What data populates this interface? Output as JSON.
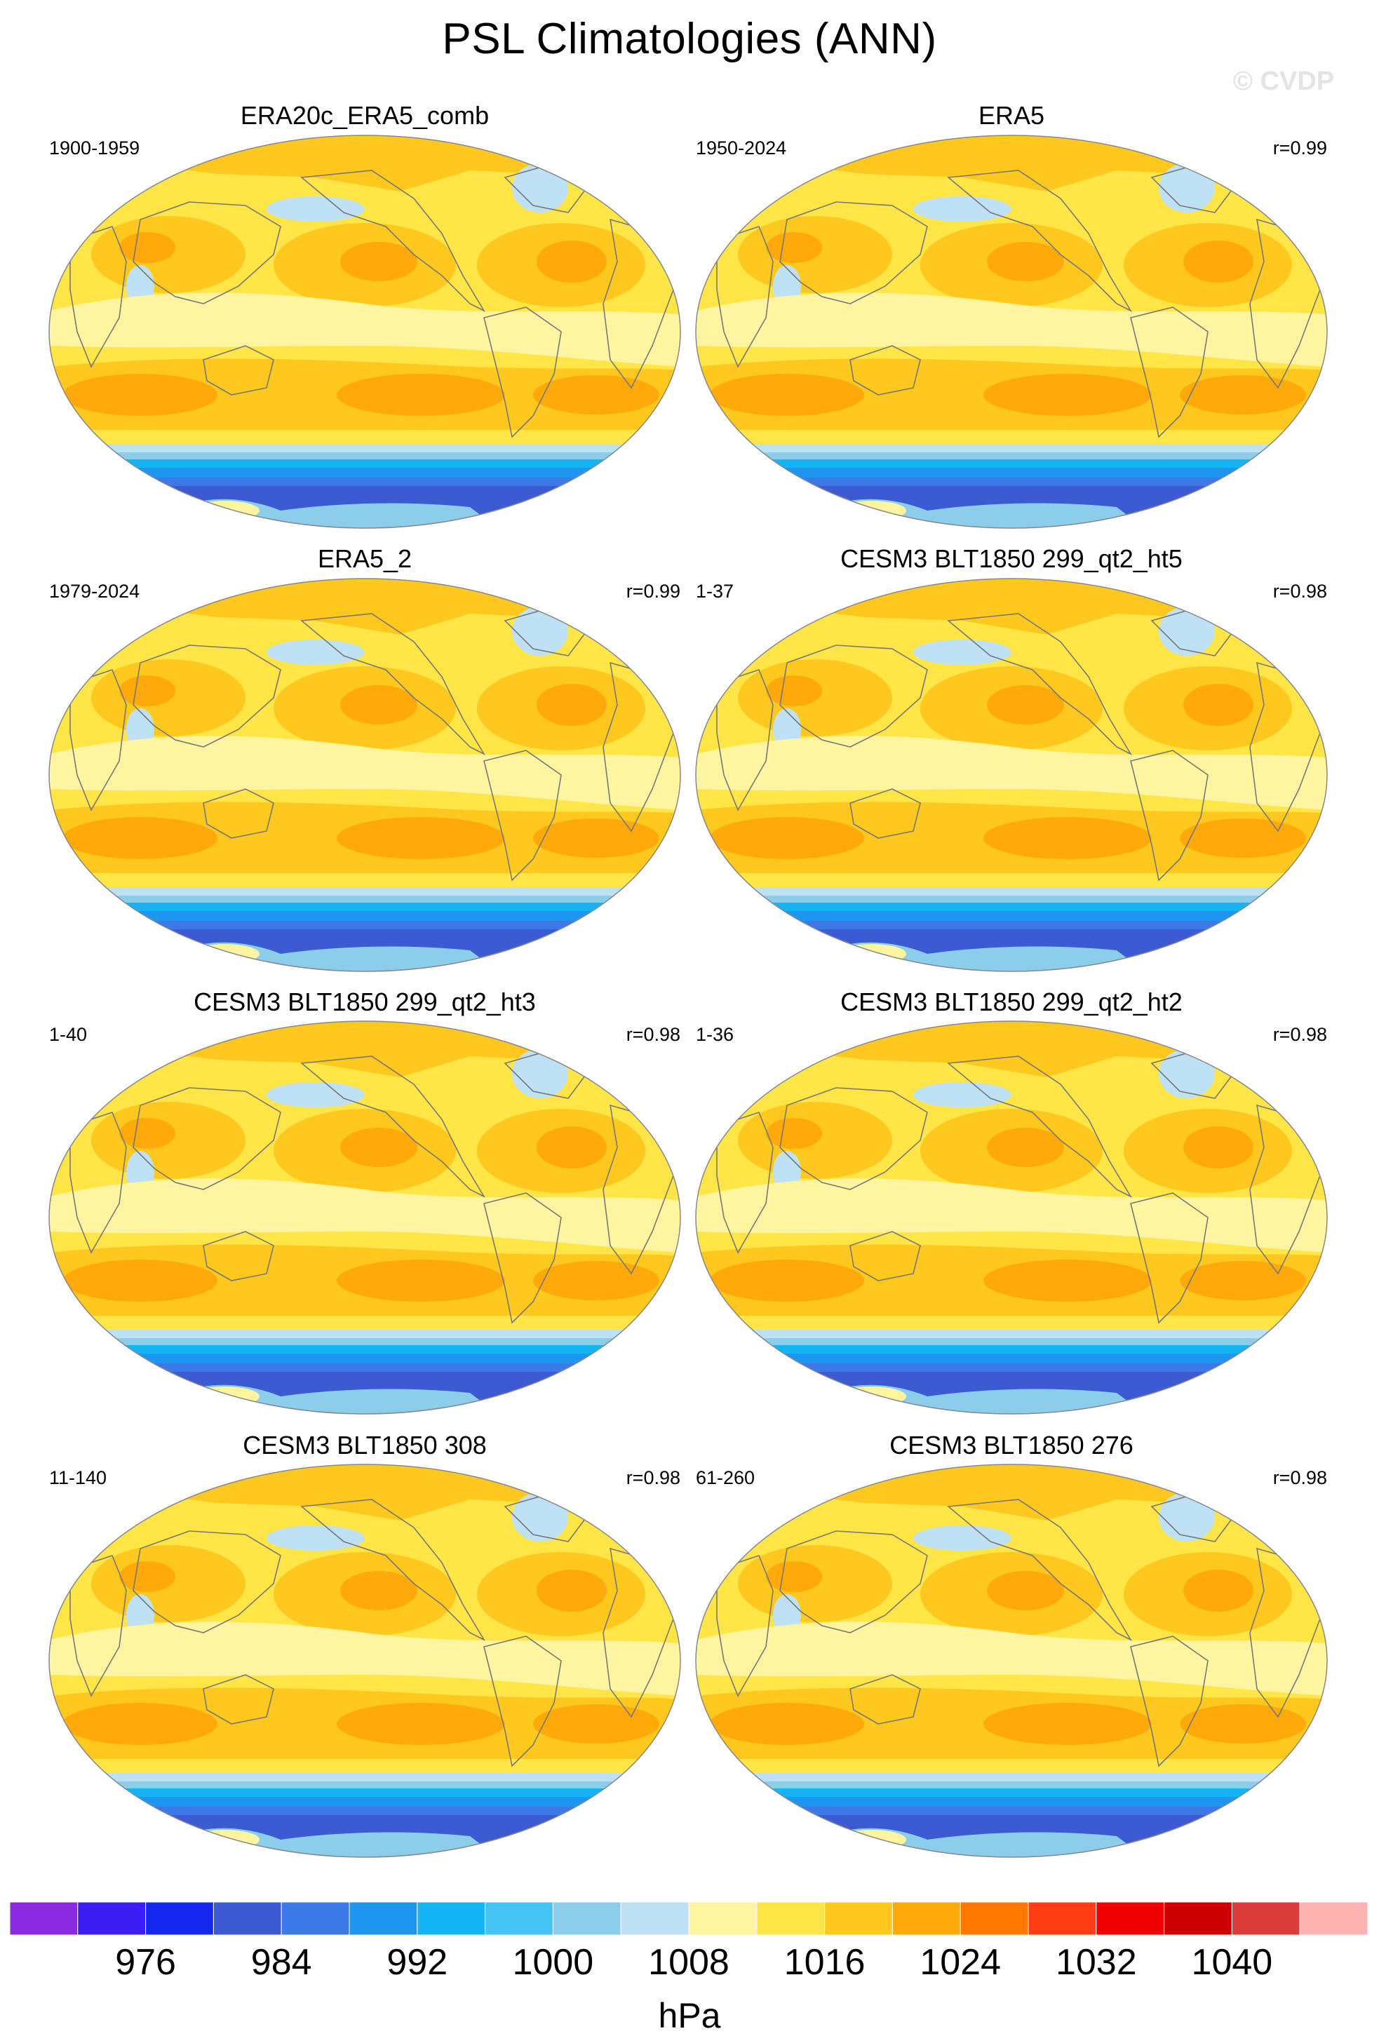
{
  "title": "PSL Climatologies (ANN)",
  "watermark": "© CVDP",
  "units": "hPa",
  "colorbar": {
    "colors": [
      "#8a2be2",
      "#3c1ef5",
      "#1428f0",
      "#3c5ad2",
      "#3c78e6",
      "#1e96f0",
      "#14b4f5",
      "#46c3f5",
      "#8ccdeb",
      "#bee1f5",
      "#fff5a0",
      "#ffe646",
      "#ffc81e",
      "#ffaa0a",
      "#ff7800",
      "#ff3c14",
      "#f00000",
      "#cd0000",
      "#dc3c3c",
      "#ffb4b4"
    ],
    "labels": [
      "976",
      "984",
      "992",
      "1000",
      "1008",
      "1016",
      "1024",
      "1032",
      "1040"
    ]
  },
  "panels": [
    {
      "title": "ERA20c_ERA5_comb",
      "years": "1900-1959",
      "corr": ""
    },
    {
      "title": "ERA5",
      "years": "1950-2024",
      "corr": "r=0.99"
    },
    {
      "title": "ERA5_2",
      "years": "1979-2024",
      "corr": "r=0.99"
    },
    {
      "title": "CESM3 BLT1850 299_qt2_ht5",
      "years": "1-37",
      "corr": "r=0.98"
    },
    {
      "title": "CESM3 BLT1850 299_qt2_ht3",
      "years": "1-40",
      "corr": "r=0.98"
    },
    {
      "title": "CESM3 BLT1850 299_qt2_ht2",
      "years": "1-36",
      "corr": "r=0.98"
    },
    {
      "title": "CESM3 BLT1850 308",
      "years": "11-140",
      "corr": "r=0.98"
    },
    {
      "title": "CESM3 BLT1850 276",
      "years": "61-260",
      "corr": "r=0.98"
    }
  ]
}
